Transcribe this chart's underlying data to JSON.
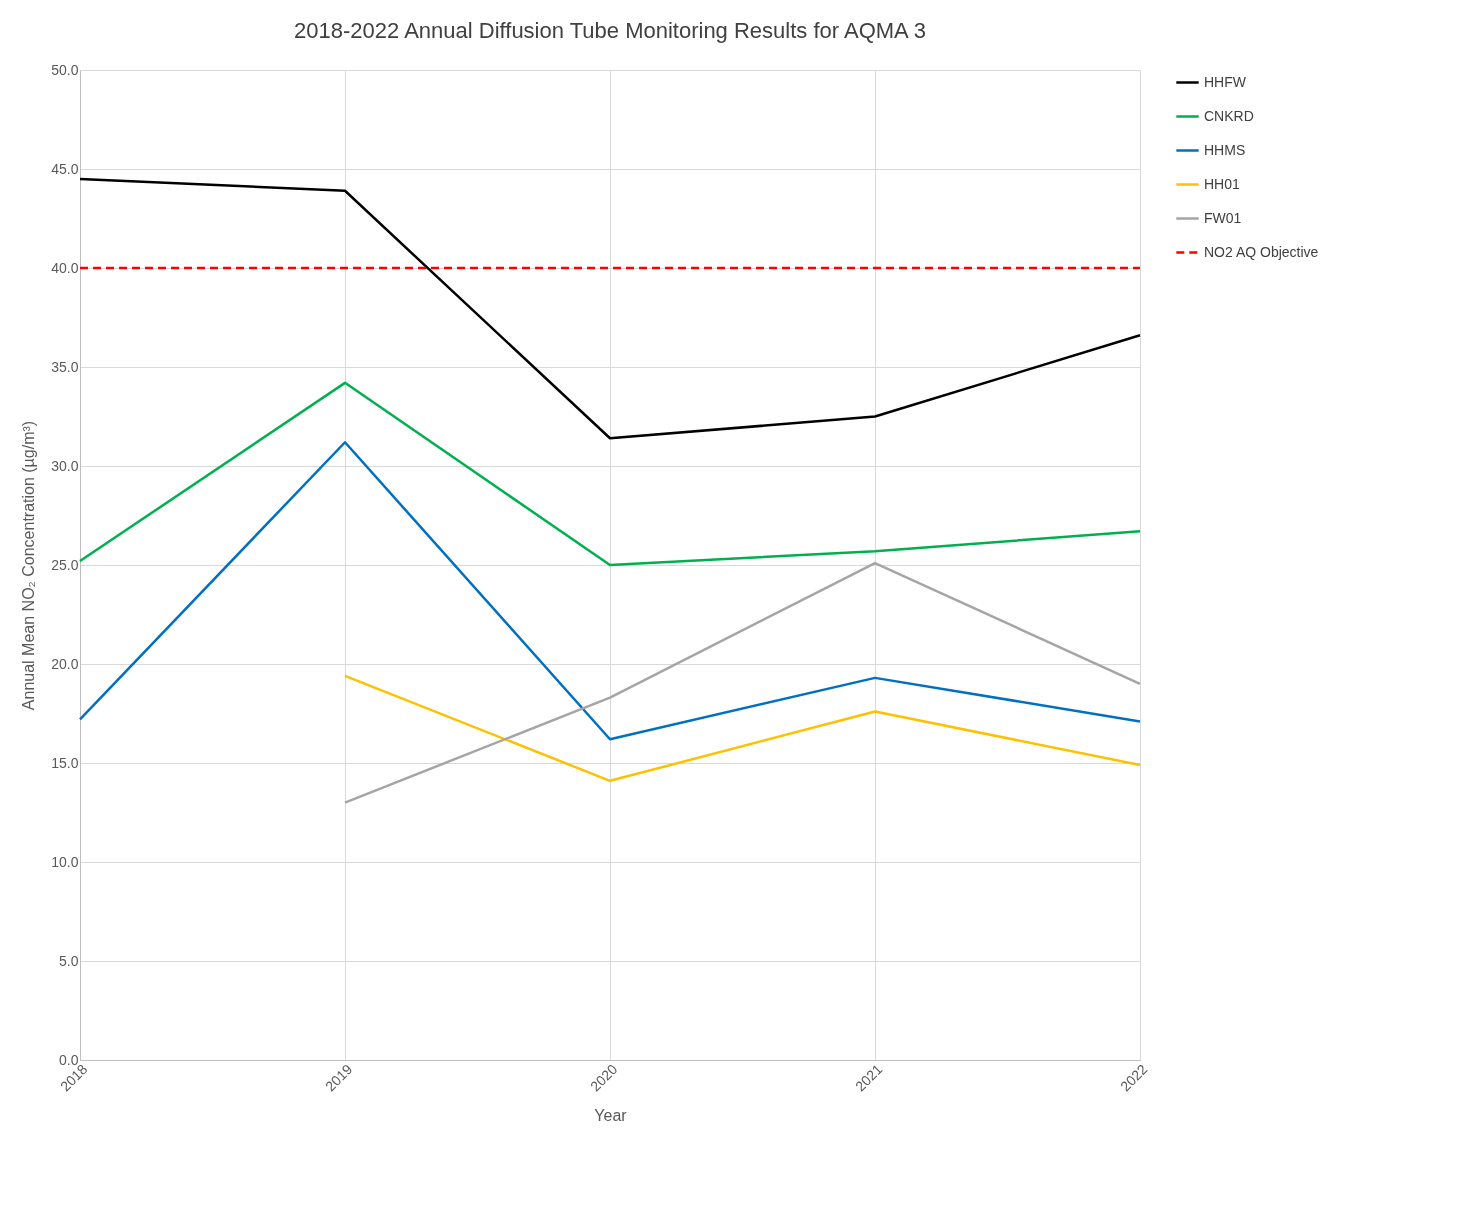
{
  "chart_data": {
    "type": "line",
    "title": "2018-2022 Annual Diffusion Tube Monitoring Results for AQMA 3",
    "xlabel": "Year",
    "ylabel": "Annual Mean NO₂ Concentration (µg/m³)",
    "categories": [
      "2018",
      "2019",
      "2020",
      "2021",
      "2022"
    ],
    "series": [
      {
        "name": "HHFW",
        "color": "#000000",
        "values": [
          44.5,
          43.9,
          31.4,
          32.5,
          36.6
        ]
      },
      {
        "name": "CNKRD",
        "color": "#00b050",
        "values": [
          25.2,
          34.2,
          25.0,
          25.7,
          26.7
        ]
      },
      {
        "name": "HHMS",
        "color": "#0070c0",
        "values": [
          17.2,
          31.2,
          16.2,
          19.3,
          17.1
        ]
      },
      {
        "name": "HH01",
        "color": "#ffc000",
        "values": [
          null,
          19.4,
          14.1,
          17.6,
          14.9
        ]
      },
      {
        "name": "FW01",
        "color": "#a5a5a5",
        "values": [
          null,
          13.0,
          18.3,
          25.1,
          19.0
        ]
      }
    ],
    "ref_lines": [
      {
        "axis": "y",
        "value": 40,
        "label": "NO2 AQ Objective",
        "color": "#ff0000",
        "line_style": "dashed"
      }
    ],
    "ylim": [
      0,
      50
    ],
    "yticks": [
      {
        "value": 0,
        "label": "0.0"
      },
      {
        "value": 5,
        "label": "5.0"
      },
      {
        "value": 10,
        "label": "10.0"
      },
      {
        "value": 15,
        "label": "15.0"
      },
      {
        "value": 20,
        "label": "20.0"
      },
      {
        "value": 25,
        "label": "25.0"
      },
      {
        "value": 30,
        "label": "30.0"
      },
      {
        "value": 35,
        "label": "35.0"
      },
      {
        "value": 40,
        "label": "40.0"
      },
      {
        "value": 45,
        "label": "45.0"
      },
      {
        "value": 50,
        "label": "50.0"
      }
    ],
    "grid": true,
    "legend": "right",
    "marker": "none",
    "line_style": "solid"
  }
}
